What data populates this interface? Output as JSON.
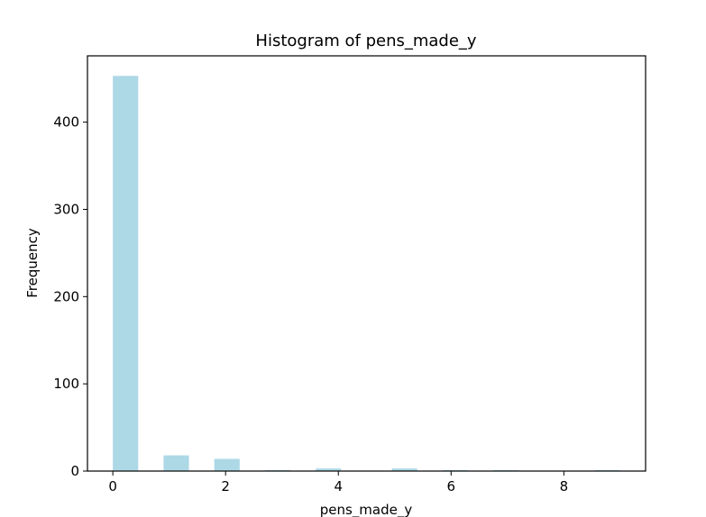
{
  "chart_data": {
    "type": "bar",
    "title": "Histogram of pens_made_y",
    "xlabel": "pens_made_y",
    "ylabel": "Frequency",
    "bar_color": "#add8e6",
    "grid": false,
    "xlim": [
      -0.45,
      9.45
    ],
    "ylim": [
      0,
      476
    ],
    "xticks": [
      0,
      2,
      4,
      6,
      8
    ],
    "yticks": [
      0,
      100,
      200,
      300,
      400
    ],
    "bins": [
      {
        "x0": 0.0,
        "x1": 0.45,
        "value": 453
      },
      {
        "x0": 0.9,
        "x1": 1.35,
        "value": 18
      },
      {
        "x0": 1.8,
        "x1": 2.25,
        "value": 14
      },
      {
        "x0": 2.7,
        "x1": 3.15,
        "value": 1
      },
      {
        "x0": 3.6,
        "x1": 4.05,
        "value": 3
      },
      {
        "x0": 4.5,
        "x1": 4.95,
        "value": 0
      },
      {
        "x0": 4.95,
        "x1": 5.4,
        "value": 3
      },
      {
        "x0": 5.85,
        "x1": 6.3,
        "value": 1
      },
      {
        "x0": 6.75,
        "x1": 7.2,
        "value": 1
      },
      {
        "x0": 7.65,
        "x1": 8.1,
        "value": 0
      },
      {
        "x0": 8.55,
        "x1": 9.0,
        "value": 1
      }
    ]
  }
}
